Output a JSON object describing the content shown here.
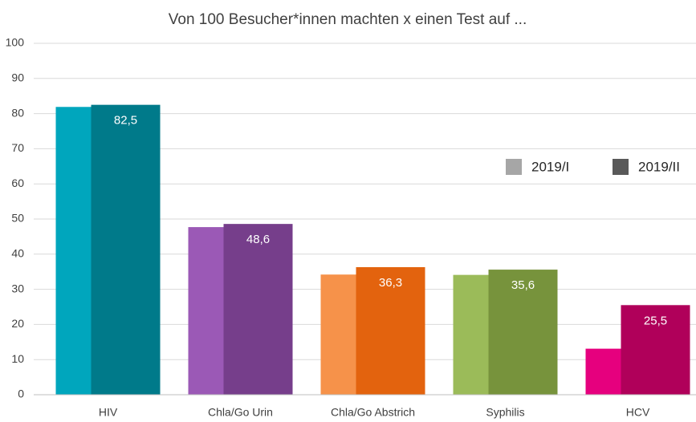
{
  "chart_data": {
    "type": "bar",
    "title": "Von 100 Besucher*innen machten x einen Test auf ...",
    "categories": [
      "HIV",
      "Chla/Go Urin",
      "Chla/Go Abstrich",
      "Syphilis",
      "HCV"
    ],
    "series": [
      {
        "name": "2019/I",
        "color": "#a6a6a6",
        "colors": [
          "#00a6bd",
          "#9b59b6",
          "#f6924a",
          "#9bbb59",
          "#e6007e"
        ],
        "values": [
          81.9,
          47.7,
          34.2,
          34.1,
          13.1
        ]
      },
      {
        "name": "2019/II",
        "color": "#595959",
        "colors": [
          "#007a8a",
          "#763e8b",
          "#e3630e",
          "#77933c",
          "#b0005a"
        ],
        "values": [
          82.5,
          48.6,
          36.3,
          35.6,
          25.5
        ],
        "value_labels": [
          "82,5",
          "48,6",
          "36,3",
          "35,6",
          "25,5"
        ]
      }
    ],
    "ylim": [
      0,
      100
    ],
    "yticks": [
      0,
      10,
      20,
      30,
      40,
      50,
      60,
      70,
      80,
      90,
      100
    ],
    "grid": true
  }
}
